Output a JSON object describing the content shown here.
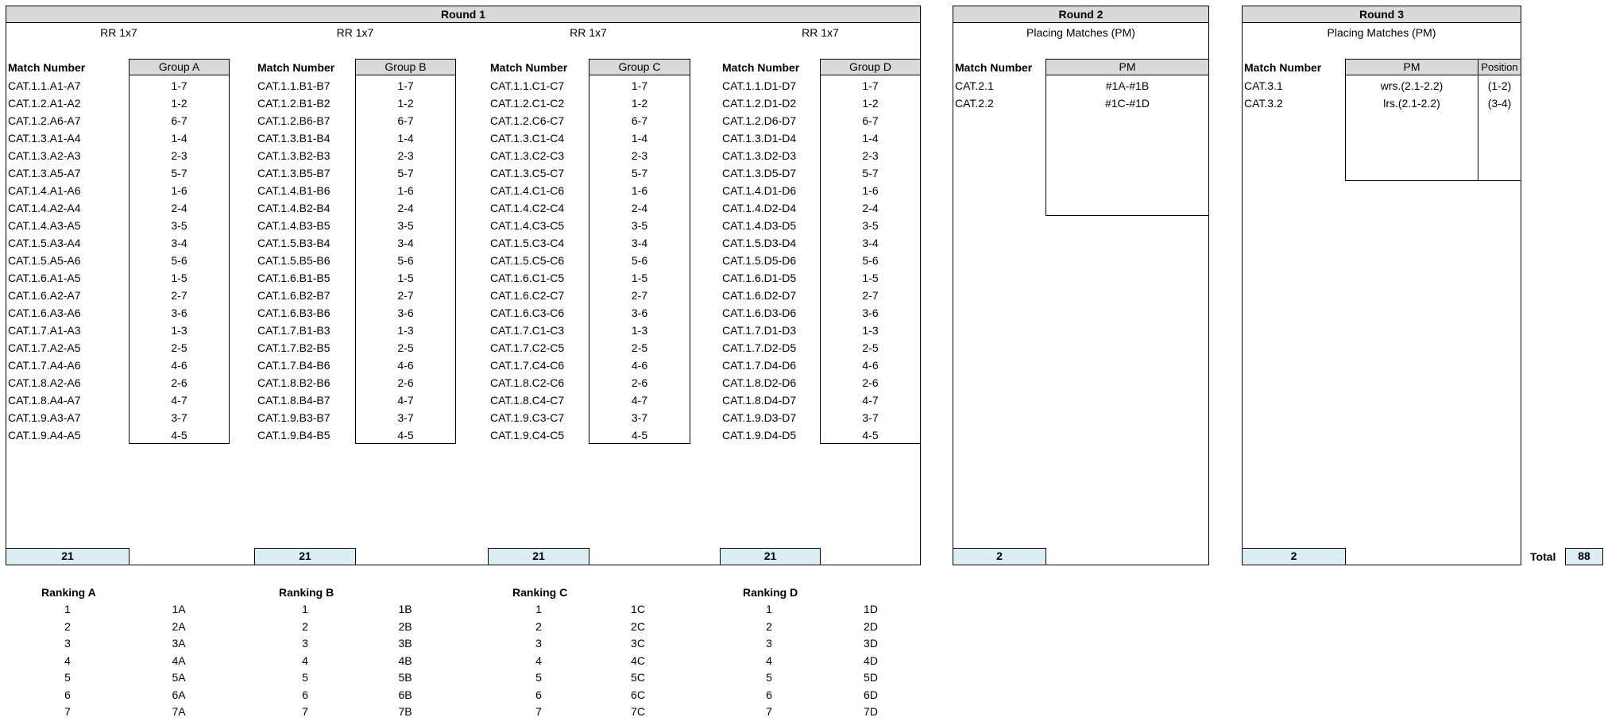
{
  "round1": {
    "title": "Round 1",
    "groups": [
      {
        "subtitle": "RR 1x7",
        "match_header": "Match Number",
        "group_header": "Group A",
        "count": "21",
        "rows": [
          [
            "CAT.1.1.A1-A7",
            "1-7"
          ],
          [
            "CAT.1.2.A1-A2",
            "1-2"
          ],
          [
            "CAT.1.2.A6-A7",
            "6-7"
          ],
          [
            "CAT.1.3.A1-A4",
            "1-4"
          ],
          [
            "CAT.1.3.A2-A3",
            "2-3"
          ],
          [
            "CAT.1.3.A5-A7",
            "5-7"
          ],
          [
            "CAT.1.4.A1-A6",
            "1-6"
          ],
          [
            "CAT.1.4.A2-A4",
            "2-4"
          ],
          [
            "CAT.1.4.A3-A5",
            "3-5"
          ],
          [
            "CAT.1.5.A3-A4",
            "3-4"
          ],
          [
            "CAT.1.5.A5-A6",
            "5-6"
          ],
          [
            "CAT.1.6.A1-A5",
            "1-5"
          ],
          [
            "CAT.1.6.A2-A7",
            "2-7"
          ],
          [
            "CAT.1.6.A3-A6",
            "3-6"
          ],
          [
            "CAT.1.7.A1-A3",
            "1-3"
          ],
          [
            "CAT.1.7.A2-A5",
            "2-5"
          ],
          [
            "CAT.1.7.A4-A6",
            "4-6"
          ],
          [
            "CAT.1.8.A2-A6",
            "2-6"
          ],
          [
            "CAT.1.8.A4-A7",
            "4-7"
          ],
          [
            "CAT.1.9.A3-A7",
            "3-7"
          ],
          [
            "CAT.1.9.A4-A5",
            "4-5"
          ]
        ]
      },
      {
        "subtitle": "RR 1x7",
        "match_header": "Match Number",
        "group_header": "Group B",
        "count": "21",
        "rows": [
          [
            "CAT.1.1.B1-B7",
            "1-7"
          ],
          [
            "CAT.1.2.B1-B2",
            "1-2"
          ],
          [
            "CAT.1.2.B6-B7",
            "6-7"
          ],
          [
            "CAT.1.3.B1-B4",
            "1-4"
          ],
          [
            "CAT.1.3.B2-B3",
            "2-3"
          ],
          [
            "CAT.1.3.B5-B7",
            "5-7"
          ],
          [
            "CAT.1.4.B1-B6",
            "1-6"
          ],
          [
            "CAT.1.4.B2-B4",
            "2-4"
          ],
          [
            "CAT.1.4.B3-B5",
            "3-5"
          ],
          [
            "CAT.1.5.B3-B4",
            "3-4"
          ],
          [
            "CAT.1.5.B5-B6",
            "5-6"
          ],
          [
            "CAT.1.6.B1-B5",
            "1-5"
          ],
          [
            "CAT.1.6.B2-B7",
            "2-7"
          ],
          [
            "CAT.1.6.B3-B6",
            "3-6"
          ],
          [
            "CAT.1.7.B1-B3",
            "1-3"
          ],
          [
            "CAT.1.7.B2-B5",
            "2-5"
          ],
          [
            "CAT.1.7.B4-B6",
            "4-6"
          ],
          [
            "CAT.1.8.B2-B6",
            "2-6"
          ],
          [
            "CAT.1.8.B4-B7",
            "4-7"
          ],
          [
            "CAT.1.9.B3-B7",
            "3-7"
          ],
          [
            "CAT.1.9.B4-B5",
            "4-5"
          ]
        ]
      },
      {
        "subtitle": "RR 1x7",
        "match_header": "Match Number",
        "group_header": "Group C",
        "count": "21",
        "rows": [
          [
            "CAT.1.1.C1-C7",
            "1-7"
          ],
          [
            "CAT.1.2.C1-C2",
            "1-2"
          ],
          [
            "CAT.1.2.C6-C7",
            "6-7"
          ],
          [
            "CAT.1.3.C1-C4",
            "1-4"
          ],
          [
            "CAT.1.3.C2-C3",
            "2-3"
          ],
          [
            "CAT.1.3.C5-C7",
            "5-7"
          ],
          [
            "CAT.1.4.C1-C6",
            "1-6"
          ],
          [
            "CAT.1.4.C2-C4",
            "2-4"
          ],
          [
            "CAT.1.4.C3-C5",
            "3-5"
          ],
          [
            "CAT.1.5.C3-C4",
            "3-4"
          ],
          [
            "CAT.1.5.C5-C6",
            "5-6"
          ],
          [
            "CAT.1.6.C1-C5",
            "1-5"
          ],
          [
            "CAT.1.6.C2-C7",
            "2-7"
          ],
          [
            "CAT.1.6.C3-C6",
            "3-6"
          ],
          [
            "CAT.1.7.C1-C3",
            "1-3"
          ],
          [
            "CAT.1.7.C2-C5",
            "2-5"
          ],
          [
            "CAT.1.7.C4-C6",
            "4-6"
          ],
          [
            "CAT.1.8.C2-C6",
            "2-6"
          ],
          [
            "CAT.1.8.C4-C7",
            "4-7"
          ],
          [
            "CAT.1.9.C3-C7",
            "3-7"
          ],
          [
            "CAT.1.9.C4-C5",
            "4-5"
          ]
        ]
      },
      {
        "subtitle": "RR 1x7",
        "match_header": "Match Number",
        "group_header": "Group D",
        "count": "21",
        "rows": [
          [
            "CAT.1.1.D1-D7",
            "1-7"
          ],
          [
            "CAT.1.2.D1-D2",
            "1-2"
          ],
          [
            "CAT.1.2.D6-D7",
            "6-7"
          ],
          [
            "CAT.1.3.D1-D4",
            "1-4"
          ],
          [
            "CAT.1.3.D2-D3",
            "2-3"
          ],
          [
            "CAT.1.3.D5-D7",
            "5-7"
          ],
          [
            "CAT.1.4.D1-D6",
            "1-6"
          ],
          [
            "CAT.1.4.D2-D4",
            "2-4"
          ],
          [
            "CAT.1.4.D3-D5",
            "3-5"
          ],
          [
            "CAT.1.5.D3-D4",
            "3-4"
          ],
          [
            "CAT.1.5.D5-D6",
            "5-6"
          ],
          [
            "CAT.1.6.D1-D5",
            "1-5"
          ],
          [
            "CAT.1.6.D2-D7",
            "2-7"
          ],
          [
            "CAT.1.6.D3-D6",
            "3-6"
          ],
          [
            "CAT.1.7.D1-D3",
            "1-3"
          ],
          [
            "CAT.1.7.D2-D5",
            "2-5"
          ],
          [
            "CAT.1.7.D4-D6",
            "4-6"
          ],
          [
            "CAT.1.8.D2-D6",
            "2-6"
          ],
          [
            "CAT.1.8.D4-D7",
            "4-7"
          ],
          [
            "CAT.1.9.D3-D7",
            "3-7"
          ],
          [
            "CAT.1.9.D4-D5",
            "4-5"
          ]
        ]
      }
    ]
  },
  "round2": {
    "title": "Round 2",
    "subtitle": "Placing Matches (PM)",
    "match_header": "Match Number",
    "pm_header": "PM",
    "count": "2",
    "rows": [
      [
        "CAT.2.1",
        "#1A-#1B"
      ],
      [
        "CAT.2.2",
        "#1C-#1D"
      ]
    ]
  },
  "round3": {
    "title": "Round 3",
    "subtitle": "Placing Matches (PM)",
    "match_header": "Match Number",
    "pm_header": "PM",
    "position_header": "Position",
    "count": "2",
    "rows": [
      [
        "CAT.3.1",
        "wrs.(2.1-2.2)",
        "(1-2)"
      ],
      [
        "CAT.3.2",
        "lrs.(2.1-2.2)",
        "(3-4)"
      ]
    ]
  },
  "total": {
    "label": "Total",
    "value": "88"
  },
  "rankings": [
    {
      "title": "Ranking A",
      "rows": [
        [
          "1",
          "1A"
        ],
        [
          "2",
          "2A"
        ],
        [
          "3",
          "3A"
        ],
        [
          "4",
          "4A"
        ],
        [
          "5",
          "5A"
        ],
        [
          "6",
          "6A"
        ],
        [
          "7",
          "7A"
        ]
      ]
    },
    {
      "title": "Ranking B",
      "rows": [
        [
          "1",
          "1B"
        ],
        [
          "2",
          "2B"
        ],
        [
          "3",
          "3B"
        ],
        [
          "4",
          "4B"
        ],
        [
          "5",
          "5B"
        ],
        [
          "6",
          "6B"
        ],
        [
          "7",
          "7B"
        ]
      ]
    },
    {
      "title": "Ranking C",
      "rows": [
        [
          "1",
          "1C"
        ],
        [
          "2",
          "2C"
        ],
        [
          "3",
          "3C"
        ],
        [
          "4",
          "4C"
        ],
        [
          "5",
          "5C"
        ],
        [
          "6",
          "6C"
        ],
        [
          "7",
          "7C"
        ]
      ]
    },
    {
      "title": "Ranking D",
      "rows": [
        [
          "1",
          "1D"
        ],
        [
          "2",
          "2D"
        ],
        [
          "3",
          "3D"
        ],
        [
          "4",
          "4D"
        ],
        [
          "5",
          "5D"
        ],
        [
          "6",
          "6D"
        ],
        [
          "7",
          "7D"
        ]
      ]
    }
  ]
}
